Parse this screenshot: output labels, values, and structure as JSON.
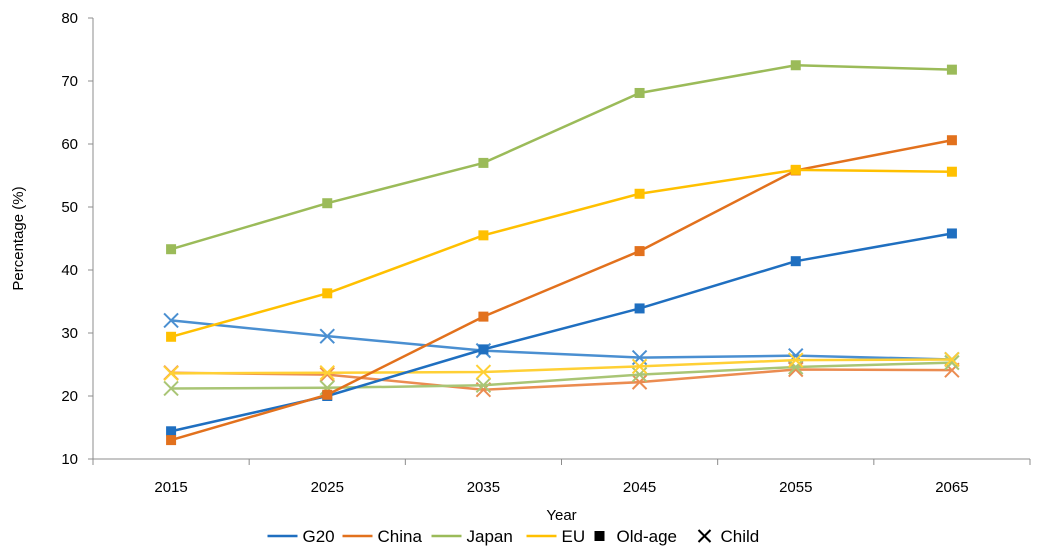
{
  "chart_data": {
    "type": "line",
    "xlabel": "Year",
    "ylabel": "Percentage (%)",
    "ylim": [
      10,
      80
    ],
    "yticks": [
      10,
      20,
      30,
      40,
      50,
      60,
      70,
      80
    ],
    "categories": [
      "2015",
      "2025",
      "2035",
      "2045",
      "2055",
      "2065"
    ],
    "grid": false,
    "legend_position": "bottom",
    "legend": [
      "G20",
      "China",
      "Japan",
      "EU",
      "Old-age",
      "Child"
    ],
    "series": [
      {
        "name": "G20",
        "type": "Old-age",
        "color": "#1f6fc0",
        "marker": "square",
        "values": [
          14.4,
          20.0,
          27.4,
          33.9,
          41.4,
          45.8
        ]
      },
      {
        "name": "China",
        "type": "Old-age",
        "color": "#e2711d",
        "marker": "square",
        "values": [
          13.0,
          20.2,
          32.6,
          43.0,
          55.8,
          60.6
        ]
      },
      {
        "name": "Japan",
        "type": "Old-age",
        "color": "#9bbb59",
        "marker": "square",
        "values": [
          43.3,
          50.6,
          57.0,
          68.1,
          72.5,
          71.8
        ]
      },
      {
        "name": "EU",
        "type": "Old-age",
        "color": "#ffc000",
        "marker": "square",
        "values": [
          29.4,
          36.3,
          45.5,
          52.1,
          55.9,
          55.6
        ]
      },
      {
        "name": "G20",
        "type": "Child",
        "color": "#4a8fd1",
        "marker": "x",
        "values": [
          32.0,
          29.5,
          27.2,
          26.1,
          26.4,
          25.8
        ]
      },
      {
        "name": "China",
        "type": "Child",
        "color": "#eb8c51",
        "marker": "x",
        "values": [
          23.7,
          23.4,
          21.0,
          22.2,
          24.2,
          24.1
        ]
      },
      {
        "name": "Japan",
        "type": "Child",
        "color": "#a9c575",
        "marker": "x",
        "values": [
          21.2,
          21.3,
          21.7,
          23.4,
          24.6,
          25.3
        ]
      },
      {
        "name": "EU",
        "type": "Child",
        "color": "#ffd035",
        "marker": "x",
        "values": [
          23.6,
          23.7,
          23.8,
          24.7,
          25.7,
          25.8
        ]
      }
    ]
  }
}
